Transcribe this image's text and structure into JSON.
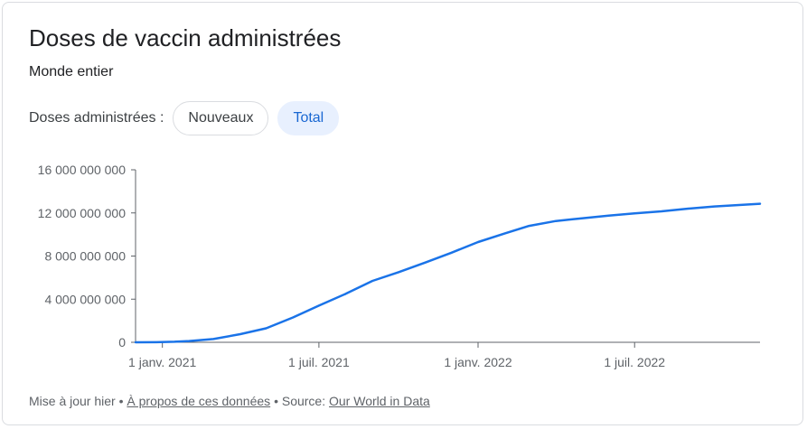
{
  "title": "Doses de vaccin administrées",
  "subtitle": "Monde entier",
  "filter": {
    "label": "Doses administrées :",
    "options": [
      {
        "label": "Nouveaux",
        "selected": false
      },
      {
        "label": "Total",
        "selected": true
      }
    ]
  },
  "footer": {
    "updated": "Mise à jour hier",
    "separator": "•",
    "about_link": "À propos de ces données",
    "source_prefix": "Source:",
    "source_link": "Our World in Data"
  },
  "colors": {
    "line": "#1a73e8",
    "chip_selected_bg": "#e8f0fe",
    "chip_selected_text": "#1967d2"
  },
  "chart_data": {
    "type": "line",
    "title": "Doses de vaccin administrées",
    "subtitle": "Monde entier",
    "xlabel": "",
    "ylabel": "",
    "x_range": [
      "2020-12-01",
      "2022-11-23"
    ],
    "ylim": [
      0,
      16000000000
    ],
    "y_ticks": [
      0,
      4000000000,
      8000000000,
      12000000000,
      16000000000
    ],
    "y_tick_labels": [
      "0",
      "4 000 000 000",
      "8 000 000 000",
      "12 000 000 000",
      "16 000 000 000"
    ],
    "x_ticks": [
      "2021-01-01",
      "2021-07-01",
      "2022-01-01",
      "2022-07-01"
    ],
    "x_tick_labels": [
      "1 janv. 2021",
      "1 juil. 2021",
      "1 janv. 2022",
      "1 juil. 2022"
    ],
    "grid": false,
    "legend": "none",
    "series": [
      {
        "values": [
          {
            "x": "2020-12-01",
            "y": 0
          },
          {
            "x": "2020-12-25",
            "y": 10000000
          },
          {
            "x": "2021-01-15",
            "y": 50000000
          },
          {
            "x": "2021-02-01",
            "y": 120000000
          },
          {
            "x": "2021-03-01",
            "y": 300000000
          },
          {
            "x": "2021-04-01",
            "y": 750000000
          },
          {
            "x": "2021-05-01",
            "y": 1300000000
          },
          {
            "x": "2021-06-01",
            "y": 2300000000
          },
          {
            "x": "2021-07-01",
            "y": 3400000000
          },
          {
            "x": "2021-08-01",
            "y": 4500000000
          },
          {
            "x": "2021-09-01",
            "y": 5700000000
          },
          {
            "x": "2021-10-01",
            "y": 6500000000
          },
          {
            "x": "2021-11-01",
            "y": 7400000000
          },
          {
            "x": "2021-12-01",
            "y": 8300000000
          },
          {
            "x": "2022-01-01",
            "y": 9300000000
          },
          {
            "x": "2022-02-01",
            "y": 10100000000
          },
          {
            "x": "2022-03-01",
            "y": 10800000000
          },
          {
            "x": "2022-04-01",
            "y": 11250000000
          },
          {
            "x": "2022-05-01",
            "y": 11500000000
          },
          {
            "x": "2022-06-01",
            "y": 11750000000
          },
          {
            "x": "2022-07-01",
            "y": 11950000000
          },
          {
            "x": "2022-08-01",
            "y": 12150000000
          },
          {
            "x": "2022-09-01",
            "y": 12400000000
          },
          {
            "x": "2022-10-01",
            "y": 12600000000
          },
          {
            "x": "2022-11-23",
            "y": 12850000000
          }
        ]
      }
    ]
  }
}
